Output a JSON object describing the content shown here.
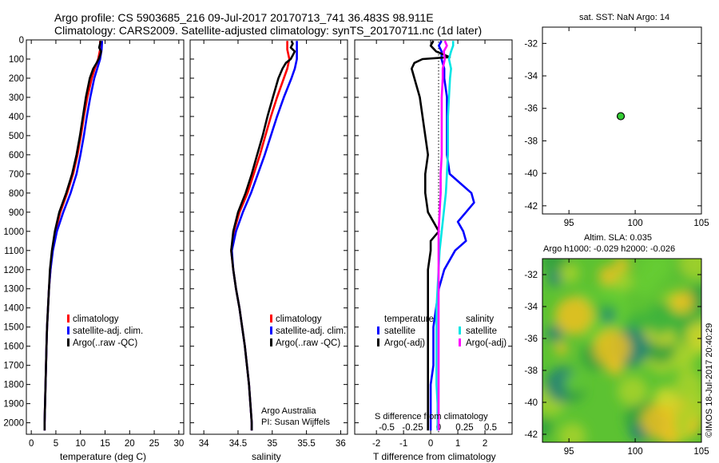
{
  "header": {
    "line1": "Argo profile: CS 5903685_216 09-Jul-2017 20170713_741 36.483S 98.911E",
    "line2": "Climatology: CARS2009. Satellite-adjusted climatology: synTS_20170711.nc (1d later)"
  },
  "credit": "©IMOS 18-Jul-2017 20:40:29",
  "colors": {
    "climatology": "#ff0000",
    "satellite": "#0000ff",
    "argo": "#000000",
    "salinity_satellite": "#00e5e5",
    "salinity_argo": "#ff00ff",
    "marker": "#33cc33"
  },
  "chart_data": [
    {
      "type": "line",
      "xlabel": "temperature (deg C)",
      "ylabel": "",
      "xlim": [
        -1,
        31
      ],
      "ylim": [
        2060,
        0
      ],
      "xticks": [
        "0",
        "5",
        "10",
        "15",
        "20",
        "25",
        "30"
      ],
      "yticks": [
        "0",
        "100",
        "200",
        "300",
        "400",
        "500",
        "600",
        "700",
        "800",
        "900",
        "1000",
        "1100",
        "1200",
        "1300",
        "1400",
        "1500",
        "1600",
        "1700",
        "1800",
        "1900",
        "2000"
      ],
      "legend": [
        "climatology",
        "satellite-adj. clim.",
        "Argo(..raw -QC)"
      ],
      "series": [
        {
          "name": "climatology",
          "color": "#ff0000",
          "depth": [
            5,
            50,
            100,
            150,
            200,
            300,
            400,
            500,
            600,
            700,
            800,
            900,
            1000,
            1100,
            1200,
            1300,
            1400,
            1500,
            1600,
            1700,
            1800,
            1900,
            2000,
            2040
          ],
          "values": [
            14.0,
            14.0,
            13.6,
            12.9,
            12.3,
            11.4,
            10.7,
            10.1,
            9.4,
            8.5,
            7.3,
            5.9,
            4.9,
            4.3,
            3.9,
            3.6,
            3.4,
            3.2,
            3.1,
            3.0,
            2.9,
            2.8,
            2.7,
            2.7
          ]
        },
        {
          "name": "satellite-adj. clim.",
          "color": "#0000ff",
          "depth": [
            5,
            50,
            100,
            150,
            200,
            300,
            400,
            500,
            600,
            700,
            800,
            900,
            1000,
            1100,
            1200,
            1300,
            1400,
            1500,
            1600,
            1700,
            1800,
            1900,
            2000,
            2040
          ],
          "values": [
            14.4,
            14.3,
            14.0,
            13.4,
            12.8,
            12.0,
            11.3,
            10.7,
            10.0,
            9.2,
            8.0,
            6.5,
            5.2,
            4.4,
            3.9,
            3.6,
            3.4,
            3.2,
            3.1,
            3.0,
            2.9,
            2.8,
            2.7,
            2.7
          ]
        },
        {
          "name": "Argo(..raw -QC)",
          "color": "#000000",
          "depth": [
            5,
            20,
            40,
            60,
            80,
            100,
            120,
            150,
            200,
            300,
            400,
            500,
            600,
            700,
            800,
            900,
            1000,
            1100,
            1200,
            1300,
            1400,
            1500,
            1600,
            1700,
            1800,
            1900,
            2000,
            2040
          ],
          "values": [
            14.1,
            14.0,
            13.8,
            14.2,
            14.0,
            13.7,
            13.3,
            12.6,
            11.9,
            11.1,
            10.5,
            9.9,
            9.2,
            8.3,
            7.1,
            5.7,
            4.8,
            4.2,
            3.8,
            3.6,
            3.4,
            3.2,
            3.1,
            3.0,
            2.9,
            2.8,
            2.7,
            2.7
          ]
        }
      ]
    },
    {
      "type": "line",
      "xlabel": "salinity",
      "ylabel": "",
      "xlim": [
        33.8,
        36.1
      ],
      "ylim": [
        2060,
        0
      ],
      "xticks": [
        "34",
        "34.5",
        "35",
        "35.5",
        "36"
      ],
      "legend": [
        "climatology",
        "satellite-adj. clim.",
        "Argo(..raw -QC)"
      ],
      "annotation": [
        "Argo Australia",
        "PI: Susan Wijffels"
      ],
      "series": [
        {
          "name": "climatology",
          "color": "#ff0000",
          "depth": [
            5,
            50,
            100,
            150,
            200,
            300,
            400,
            500,
            600,
            700,
            800,
            900,
            1000,
            1100,
            1200,
            1300,
            1400,
            1500,
            1600,
            1700,
            1800,
            1900,
            2000,
            2040
          ],
          "values": [
            35.22,
            35.22,
            35.25,
            35.22,
            35.17,
            35.07,
            34.98,
            34.9,
            34.82,
            34.73,
            34.64,
            34.52,
            34.44,
            34.4,
            34.43,
            34.47,
            34.52,
            34.56,
            34.6,
            34.63,
            34.66,
            34.68,
            34.7,
            34.7
          ]
        },
        {
          "name": "satellite-adj. clim.",
          "color": "#0000ff",
          "depth": [
            5,
            50,
            100,
            150,
            200,
            300,
            400,
            500,
            600,
            700,
            800,
            900,
            1000,
            1100,
            1200,
            1300,
            1400,
            1500,
            1600,
            1700,
            1800,
            1900,
            2000,
            2040
          ],
          "values": [
            35.36,
            35.36,
            35.36,
            35.33,
            35.28,
            35.17,
            35.07,
            34.98,
            34.89,
            34.79,
            34.69,
            34.57,
            34.47,
            34.41,
            34.43,
            34.47,
            34.52,
            34.56,
            34.6,
            34.63,
            34.66,
            34.68,
            34.7,
            34.7
          ]
        },
        {
          "name": "Argo(..raw -QC)",
          "color": "#000000",
          "depth": [
            5,
            20,
            40,
            60,
            80,
            100,
            120,
            150,
            200,
            300,
            400,
            500,
            600,
            700,
            800,
            900,
            1000,
            1100,
            1200,
            1300,
            1400,
            1500,
            1600,
            1700,
            1800,
            1900,
            2000,
            2040
          ],
          "values": [
            35.28,
            35.3,
            35.27,
            35.33,
            35.3,
            35.27,
            35.2,
            35.15,
            35.09,
            35.01,
            34.93,
            34.86,
            34.78,
            34.7,
            34.61,
            34.5,
            34.43,
            34.4,
            34.43,
            34.47,
            34.52,
            34.56,
            34.6,
            34.63,
            34.66,
            34.68,
            34.7,
            34.7
          ]
        }
      ]
    },
    {
      "type": "line",
      "xlabel": "T difference from climatology",
      "xlabel2": "S difference from climatology",
      "ylabel": "",
      "xlim": [
        -2.8,
        3.0
      ],
      "ylim": [
        2060,
        0
      ],
      "xticks": [
        "-2",
        "-1",
        "0",
        "1",
        "2"
      ],
      "xticks_s": [
        "-0.5",
        "-0.25",
        "0",
        "0.25",
        "0.5"
      ],
      "legend_headers": [
        "temperature",
        "salinity"
      ],
      "legend": [
        "satellite",
        "Argo(-adj)",
        "satellite",
        "Argo(-adj)"
      ],
      "series": [
        {
          "name": "temperature satellite",
          "color": "#0000ff",
          "depth": [
            5,
            30,
            60,
            100,
            150,
            200,
            300,
            400,
            500,
            600,
            700,
            750,
            800,
            850,
            900,
            950,
            1000,
            1050,
            1100,
            1200,
            1300,
            1400,
            1500,
            1600,
            1700,
            1800,
            1900,
            2000,
            2040
          ],
          "values": [
            0.4,
            0.3,
            0.4,
            0.4,
            0.5,
            0.5,
            0.6,
            0.6,
            0.6,
            0.6,
            0.7,
            1.1,
            1.5,
            1.6,
            1.3,
            1.0,
            1.2,
            1.3,
            0.9,
            0.5,
            0.3,
            0.2,
            0.1,
            0.1,
            0.1,
            0.0,
            0.0,
            0.0,
            0.0
          ]
        },
        {
          "name": "temperature Argo(-adj)",
          "color": "#000000",
          "depth": [
            5,
            30,
            60,
            90,
            100,
            120,
            150,
            200,
            300,
            400,
            500,
            600,
            700,
            800,
            900,
            950,
            1000,
            1050,
            1100,
            1200,
            1300,
            1400,
            1500,
            1600,
            1700,
            1800,
            1900,
            2000,
            2040
          ],
          "values": [
            0.1,
            0.0,
            0.2,
            0.7,
            -0.3,
            -0.6,
            -0.7,
            -0.6,
            -0.4,
            -0.3,
            -0.2,
            -0.1,
            -0.2,
            -0.2,
            -0.1,
            0.1,
            0.3,
            0.0,
            0.0,
            -0.1,
            -0.1,
            -0.1,
            -0.1,
            -0.1,
            -0.1,
            -0.1,
            -0.1,
            -0.1,
            -0.1
          ]
        },
        {
          "name": "salinity satellite",
          "color": "#00e5e5",
          "depth": [
            5,
            30,
            60,
            100,
            150,
            200,
            300,
            400,
            500,
            600,
            700,
            800,
            900,
            1000,
            1100,
            1200,
            1300,
            1400,
            1500,
            1600,
            1700,
            1800,
            1900,
            2000,
            2040
          ],
          "values": [
            0.14,
            0.14,
            0.12,
            0.1,
            0.12,
            0.11,
            0.1,
            0.09,
            0.09,
            0.09,
            0.08,
            0.07,
            0.05,
            0.03,
            0.01,
            0.0,
            -0.01,
            -0.02,
            -0.02,
            -0.02,
            -0.02,
            -0.02,
            -0.01,
            -0.01,
            -0.01
          ]
        },
        {
          "name": "salinity Argo(-adj)",
          "color": "#ff00ff",
          "depth": [
            5,
            30,
            60,
            100,
            150,
            200,
            300,
            400,
            500,
            600,
            700,
            800,
            900,
            1000,
            1100,
            1200,
            1300,
            1400,
            1500,
            1600,
            1700,
            1800,
            1900,
            2000,
            2040
          ],
          "values": [
            0.06,
            0.08,
            0.05,
            0.06,
            0.04,
            0.04,
            0.03,
            0.03,
            0.03,
            0.03,
            0.02,
            0.02,
            0.01,
            0.0,
            0.0,
            0.0,
            0.0,
            0.0,
            0.0,
            0.0,
            0.0,
            0.0,
            0.0,
            0.0,
            0.0
          ]
        }
      ]
    },
    {
      "type": "scatter",
      "title": "sat. SST: NaN Argo: 14",
      "xlim": [
        93,
        105
      ],
      "ylim": [
        -42.5,
        -31
      ],
      "xticks": [
        "95",
        "100",
        "105"
      ],
      "yticks": [
        "-32",
        "-34",
        "-36",
        "-38",
        "-40",
        "-42"
      ],
      "points": [
        {
          "x": 98.911,
          "y": -36.483
        }
      ]
    },
    {
      "type": "heatmap",
      "title": "Altim. SLA: 0.035",
      "subtitle": "Argo h1000: -0.029 h2000: -0.026",
      "xlim": [
        93,
        105
      ],
      "ylim": [
        -42.5,
        -31
      ],
      "xticks": [
        "95",
        "100",
        "105"
      ],
      "yticks": [
        "-32",
        "-34",
        "-36",
        "-38",
        "-40",
        "-42"
      ],
      "colormap": [
        "#1f7f78",
        "#2e9e3e",
        "#3cb33c",
        "#66cc33",
        "#a8d22a",
        "#d8da2a",
        "#f0c020"
      ]
    }
  ]
}
